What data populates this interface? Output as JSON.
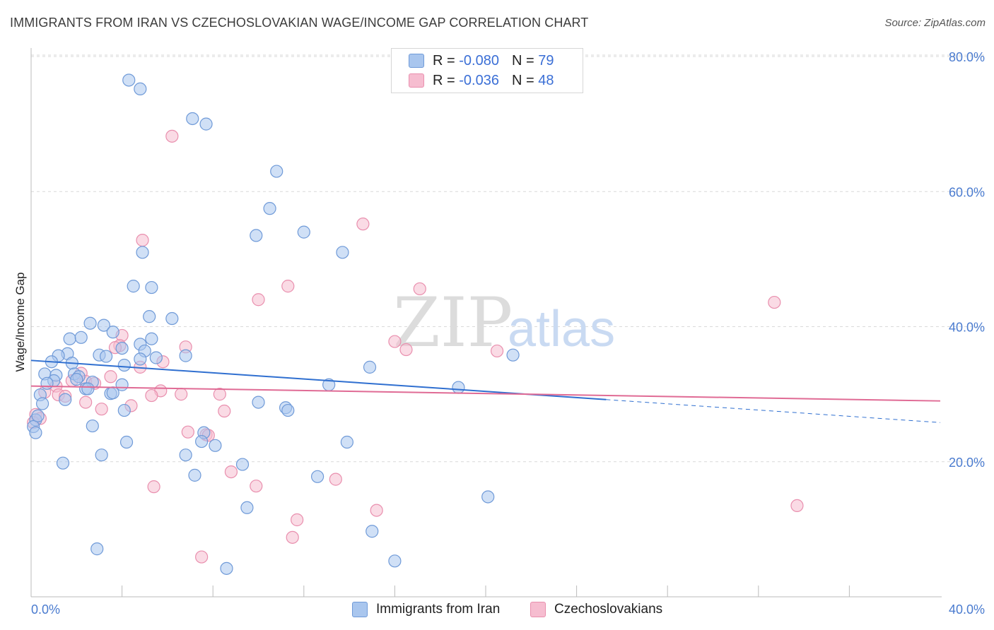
{
  "title": "IMMIGRANTS FROM IRAN VS CZECHOSLOVAKIAN WAGE/INCOME GAP CORRELATION CHART",
  "source": "Source: ZipAtlas.com",
  "watermark": {
    "zip": "ZIP",
    "atlas": "atlas"
  },
  "legend": {
    "rows": [
      {
        "r_label": "R =",
        "r_value": "-0.080",
        "n_label": "N =",
        "n_value": "79"
      },
      {
        "r_label": "R =",
        "r_value": "-0.036",
        "n_label": "N =",
        "n_value": "48"
      }
    ]
  },
  "colors": {
    "series1_fill": "#a9c6ee",
    "series1_stroke": "#6f9ad8",
    "series1_line": "#2f6fd0",
    "series2_fill": "#f6bdd0",
    "series2_stroke": "#e98fae",
    "series2_line": "#e06b95",
    "axis_label": "#4a7bcf",
    "grid": "#d9d9d9"
  },
  "chart_data": {
    "type": "scatter",
    "title": "IMMIGRANTS FROM IRAN VS CZECHOSLOVAKIAN WAGE/INCOME GAP CORRELATION CHART",
    "xlabel": "",
    "ylabel": "Wage/Income Gap",
    "xlim": [
      0,
      40
    ],
    "ylim": [
      0,
      80
    ],
    "x_tick_labels": [
      "0.0%",
      "40.0%"
    ],
    "y_tick_values": [
      20,
      40,
      60,
      80
    ],
    "y_tick_labels": [
      "20.0%",
      "40.0%",
      "60.0%",
      "80.0%"
    ],
    "grid": true,
    "legend_position": "bottom",
    "series": [
      {
        "name": "Immigrants from Iran",
        "r": -0.08,
        "n": 79,
        "trend": {
          "x0": 0,
          "y0": 35.0,
          "x1": 25.3,
          "y1": 29.2,
          "dash_x1": 40,
          "dash_y1": 25.8
        },
        "points": [
          [
            4.3,
            76.5
          ],
          [
            4.8,
            75.2
          ],
          [
            7.1,
            70.8
          ],
          [
            7.7,
            70.0
          ],
          [
            10.8,
            63.0
          ],
          [
            10.5,
            57.5
          ],
          [
            9.9,
            53.5
          ],
          [
            12.0,
            54.0
          ],
          [
            13.7,
            51.0
          ],
          [
            4.9,
            51.0
          ],
          [
            4.5,
            46.0
          ],
          [
            5.3,
            45.8
          ],
          [
            5.2,
            41.5
          ],
          [
            6.2,
            41.2
          ],
          [
            2.6,
            40.5
          ],
          [
            3.2,
            40.2
          ],
          [
            3.6,
            39.2
          ],
          [
            1.7,
            38.2
          ],
          [
            2.2,
            38.4
          ],
          [
            5.3,
            38.2
          ],
          [
            4.8,
            37.4
          ],
          [
            4.0,
            36.8
          ],
          [
            5.0,
            36.4
          ],
          [
            1.6,
            36.0
          ],
          [
            1.2,
            35.7
          ],
          [
            3.0,
            35.8
          ],
          [
            3.3,
            35.6
          ],
          [
            4.8,
            35.2
          ],
          [
            5.5,
            35.4
          ],
          [
            6.8,
            35.7
          ],
          [
            0.9,
            34.8
          ],
          [
            1.8,
            34.6
          ],
          [
            4.1,
            34.3
          ],
          [
            0.6,
            33.0
          ],
          [
            1.1,
            32.8
          ],
          [
            1.9,
            33.0
          ],
          [
            2.1,
            32.6
          ],
          [
            1.0,
            32.0
          ],
          [
            2.0,
            32.2
          ],
          [
            0.7,
            31.6
          ],
          [
            2.7,
            31.8
          ],
          [
            4.0,
            31.4
          ],
          [
            2.4,
            30.8
          ],
          [
            2.5,
            30.8
          ],
          [
            3.5,
            30.1
          ],
          [
            3.6,
            30.2
          ],
          [
            0.4,
            29.9
          ],
          [
            1.5,
            29.2
          ],
          [
            0.5,
            28.6
          ],
          [
            10.0,
            28.8
          ],
          [
            11.2,
            28.0
          ],
          [
            11.3,
            27.6
          ],
          [
            4.1,
            27.6
          ],
          [
            0.2,
            26.2
          ],
          [
            0.1,
            25.2
          ],
          [
            2.7,
            25.3
          ],
          [
            7.6,
            24.3
          ],
          [
            7.5,
            23.0
          ],
          [
            4.2,
            22.9
          ],
          [
            8.1,
            22.4
          ],
          [
            13.9,
            22.9
          ],
          [
            3.1,
            21.0
          ],
          [
            6.8,
            21.0
          ],
          [
            1.4,
            19.8
          ],
          [
            9.3,
            19.6
          ],
          [
            12.6,
            17.8
          ],
          [
            7.2,
            18.0
          ],
          [
            20.1,
            14.8
          ],
          [
            9.5,
            13.2
          ],
          [
            15.0,
            9.7
          ],
          [
            2.9,
            7.1
          ],
          [
            8.6,
            4.2
          ],
          [
            16.0,
            5.3
          ],
          [
            14.9,
            34.0
          ],
          [
            13.1,
            31.4
          ],
          [
            18.8,
            31.0
          ],
          [
            21.2,
            35.8
          ],
          [
            0.2,
            24.3
          ],
          [
            0.3,
            26.8
          ]
        ]
      },
      {
        "name": "Czechoslovakians",
        "r": -0.036,
        "n": 48,
        "trend": {
          "x0": 0,
          "y0": 31.2,
          "x1": 40,
          "y1": 29.0
        },
        "points": [
          [
            6.2,
            68.2
          ],
          [
            14.6,
            55.2
          ],
          [
            4.9,
            52.8
          ],
          [
            11.3,
            46.0
          ],
          [
            17.1,
            45.6
          ],
          [
            10.0,
            44.0
          ],
          [
            32.7,
            43.6
          ],
          [
            4.0,
            38.7
          ],
          [
            3.9,
            37.2
          ],
          [
            16.0,
            37.8
          ],
          [
            16.5,
            36.6
          ],
          [
            20.5,
            36.4
          ],
          [
            6.8,
            37.0
          ],
          [
            3.7,
            36.9
          ],
          [
            4.8,
            34.0
          ],
          [
            5.8,
            34.8
          ],
          [
            2.2,
            33.1
          ],
          [
            3.5,
            32.6
          ],
          [
            1.8,
            32.0
          ],
          [
            2.4,
            31.9
          ],
          [
            2.8,
            31.6
          ],
          [
            1.1,
            31.2
          ],
          [
            0.6,
            30.3
          ],
          [
            1.2,
            29.9
          ],
          [
            1.5,
            29.7
          ],
          [
            5.7,
            30.5
          ],
          [
            5.3,
            29.8
          ],
          [
            6.6,
            30.0
          ],
          [
            8.3,
            30.0
          ],
          [
            2.4,
            28.8
          ],
          [
            3.1,
            27.8
          ],
          [
            4.4,
            28.3
          ],
          [
            8.5,
            27.5
          ],
          [
            6.9,
            24.4
          ],
          [
            7.7,
            24.0
          ],
          [
            7.8,
            23.9
          ],
          [
            8.8,
            18.5
          ],
          [
            9.9,
            16.4
          ],
          [
            5.4,
            16.3
          ],
          [
            13.4,
            17.4
          ],
          [
            15.2,
            12.8
          ],
          [
            11.7,
            11.4
          ],
          [
            11.5,
            8.8
          ],
          [
            7.5,
            5.9
          ],
          [
            33.7,
            13.5
          ],
          [
            0.2,
            27.0
          ],
          [
            0.4,
            26.4
          ],
          [
            0.1,
            25.8
          ]
        ]
      }
    ]
  }
}
